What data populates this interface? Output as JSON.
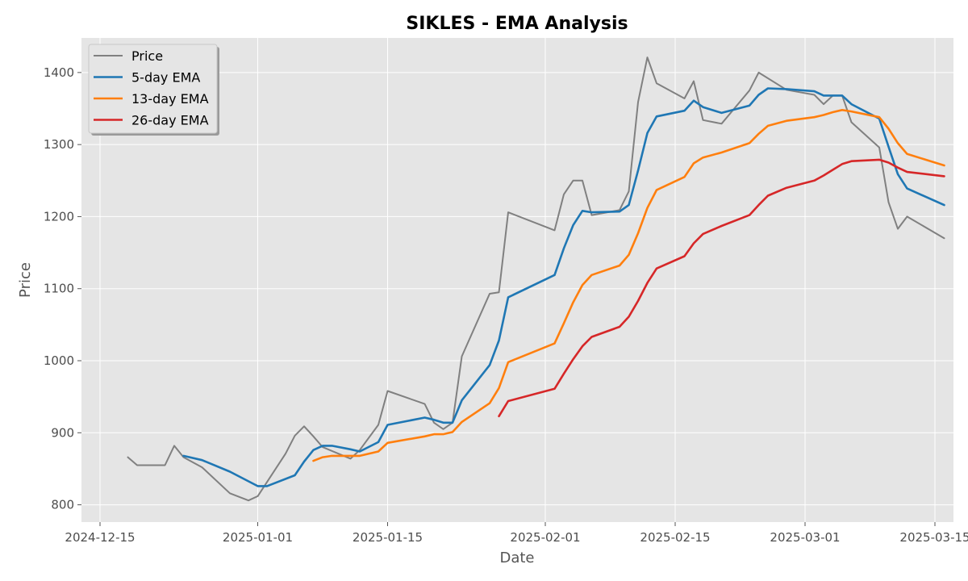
{
  "chart_data": {
    "type": "line",
    "title": "SIKLES - EMA Analysis",
    "xlabel": "Date",
    "ylabel": "Price",
    "x_range": [
      "2024-12-13",
      "2025-03-17"
    ],
    "ylim": [
      776,
      1448
    ],
    "x_ticks": [
      "2024-12-15",
      "2025-01-01",
      "2025-01-15",
      "2025-02-01",
      "2025-02-15",
      "2025-03-01",
      "2025-03-15"
    ],
    "y_ticks": [
      800,
      900,
      1000,
      1100,
      1200,
      1300,
      1400
    ],
    "grid": true,
    "legend_position": "top-left",
    "series": [
      {
        "name": "Price",
        "color": "#808080",
        "points": [
          [
            "2024-12-18",
            866
          ],
          [
            "2024-12-19",
            855
          ],
          [
            "2024-12-22",
            855
          ],
          [
            "2024-12-23",
            882
          ],
          [
            "2024-12-24",
            866
          ],
          [
            "2024-12-26",
            852
          ],
          [
            "2024-12-29",
            816
          ],
          [
            "2024-12-31",
            806
          ],
          [
            "2025-01-01",
            812
          ],
          [
            "2025-01-04",
            871
          ],
          [
            "2025-01-05",
            896
          ],
          [
            "2025-01-06",
            909
          ],
          [
            "2025-01-07",
            895
          ],
          [
            "2025-01-08",
            880
          ],
          [
            "2025-01-11",
            864
          ],
          [
            "2025-01-12",
            876
          ],
          [
            "2025-01-14",
            911
          ],
          [
            "2025-01-15",
            958
          ],
          [
            "2025-01-19",
            940
          ],
          [
            "2025-01-20",
            914
          ],
          [
            "2025-01-21",
            905
          ],
          [
            "2025-01-22",
            914
          ],
          [
            "2025-01-23",
            1006
          ],
          [
            "2025-01-26",
            1093
          ],
          [
            "2025-01-27",
            1095
          ],
          [
            "2025-01-28",
            1206
          ],
          [
            "2025-02-02",
            1181
          ],
          [
            "2025-02-03",
            1231
          ],
          [
            "2025-02-04",
            1250
          ],
          [
            "2025-02-05",
            1250
          ],
          [
            "2025-02-06",
            1202
          ],
          [
            "2025-02-09",
            1209
          ],
          [
            "2025-02-10",
            1235
          ],
          [
            "2025-02-11",
            1359
          ],
          [
            "2025-02-12",
            1421
          ],
          [
            "2025-02-13",
            1385
          ],
          [
            "2025-02-16",
            1364
          ],
          [
            "2025-02-17",
            1388
          ],
          [
            "2025-02-18",
            1334
          ],
          [
            "2025-02-20",
            1329
          ],
          [
            "2025-02-23",
            1375
          ],
          [
            "2025-02-24",
            1400
          ],
          [
            "2025-02-27",
            1376
          ],
          [
            "2025-03-02",
            1369
          ],
          [
            "2025-03-03",
            1356
          ],
          [
            "2025-03-04",
            1368
          ],
          [
            "2025-03-05",
            1368
          ],
          [
            "2025-03-06",
            1331
          ],
          [
            "2025-03-09",
            1296
          ],
          [
            "2025-03-10",
            1220
          ],
          [
            "2025-03-11",
            1183
          ],
          [
            "2025-03-12",
            1200
          ],
          [
            "2025-03-16",
            1170
          ]
        ]
      },
      {
        "name": "5-day EMA",
        "color": "#1f77b4",
        "points": [
          [
            "2024-12-24",
            868
          ],
          [
            "2024-12-26",
            862
          ],
          [
            "2024-12-29",
            846
          ],
          [
            "2025-01-01",
            826
          ],
          [
            "2025-01-02",
            826
          ],
          [
            "2025-01-05",
            841
          ],
          [
            "2025-01-06",
            860
          ],
          [
            "2025-01-07",
            876
          ],
          [
            "2025-01-08",
            882
          ],
          [
            "2025-01-09",
            882
          ],
          [
            "2025-01-11",
            877
          ],
          [
            "2025-01-12",
            874
          ],
          [
            "2025-01-14",
            887
          ],
          [
            "2025-01-15",
            911
          ],
          [
            "2025-01-19",
            921
          ],
          [
            "2025-01-20",
            918
          ],
          [
            "2025-01-21",
            914
          ],
          [
            "2025-01-22",
            914
          ],
          [
            "2025-01-23",
            945
          ],
          [
            "2025-01-26",
            994
          ],
          [
            "2025-01-27",
            1028
          ],
          [
            "2025-01-28",
            1088
          ],
          [
            "2025-02-02",
            1119
          ],
          [
            "2025-02-03",
            1156
          ],
          [
            "2025-02-04",
            1188
          ],
          [
            "2025-02-05",
            1208
          ],
          [
            "2025-02-06",
            1206
          ],
          [
            "2025-02-09",
            1207
          ],
          [
            "2025-02-10",
            1216
          ],
          [
            "2025-02-11",
            1264
          ],
          [
            "2025-02-12",
            1316
          ],
          [
            "2025-02-13",
            1339
          ],
          [
            "2025-02-16",
            1347
          ],
          [
            "2025-02-17",
            1361
          ],
          [
            "2025-02-18",
            1352
          ],
          [
            "2025-02-20",
            1344
          ],
          [
            "2025-02-23",
            1354
          ],
          [
            "2025-02-24",
            1369
          ],
          [
            "2025-02-25",
            1378
          ],
          [
            "2025-02-27",
            1377
          ],
          [
            "2025-03-02",
            1374
          ],
          [
            "2025-03-03",
            1368
          ],
          [
            "2025-03-04",
            1368
          ],
          [
            "2025-03-05",
            1368
          ],
          [
            "2025-03-06",
            1356
          ],
          [
            "2025-03-09",
            1336
          ],
          [
            "2025-03-10",
            1297
          ],
          [
            "2025-03-11",
            1259
          ],
          [
            "2025-03-12",
            1239
          ],
          [
            "2025-03-16",
            1216
          ]
        ]
      },
      {
        "name": "13-day EMA",
        "color": "#ff7f0e",
        "points": [
          [
            "2025-01-07",
            861
          ],
          [
            "2025-01-08",
            866
          ],
          [
            "2025-01-09",
            868
          ],
          [
            "2025-01-12",
            868
          ],
          [
            "2025-01-14",
            874
          ],
          [
            "2025-01-15",
            886
          ],
          [
            "2025-01-19",
            895
          ],
          [
            "2025-01-20",
            898
          ],
          [
            "2025-01-21",
            898
          ],
          [
            "2025-01-22",
            901
          ],
          [
            "2025-01-23",
            915
          ],
          [
            "2025-01-26",
            941
          ],
          [
            "2025-01-27",
            962
          ],
          [
            "2025-01-28",
            998
          ],
          [
            "2025-02-02",
            1024
          ],
          [
            "2025-02-03",
            1052
          ],
          [
            "2025-02-04",
            1081
          ],
          [
            "2025-02-05",
            1105
          ],
          [
            "2025-02-06",
            1119
          ],
          [
            "2025-02-09",
            1132
          ],
          [
            "2025-02-10",
            1147
          ],
          [
            "2025-02-11",
            1177
          ],
          [
            "2025-02-12",
            1212
          ],
          [
            "2025-02-13",
            1237
          ],
          [
            "2025-02-16",
            1255
          ],
          [
            "2025-02-17",
            1274
          ],
          [
            "2025-02-18",
            1282
          ],
          [
            "2025-02-20",
            1289
          ],
          [
            "2025-02-23",
            1302
          ],
          [
            "2025-02-24",
            1315
          ],
          [
            "2025-02-25",
            1326
          ],
          [
            "2025-02-27",
            1333
          ],
          [
            "2025-03-02",
            1338
          ],
          [
            "2025-03-03",
            1341
          ],
          [
            "2025-03-04",
            1345
          ],
          [
            "2025-03-05",
            1348
          ],
          [
            "2025-03-06",
            1346
          ],
          [
            "2025-03-09",
            1338
          ],
          [
            "2025-03-10",
            1322
          ],
          [
            "2025-03-11",
            1302
          ],
          [
            "2025-03-12",
            1287
          ],
          [
            "2025-03-16",
            1271
          ]
        ]
      },
      {
        "name": "26-day EMA",
        "color": "#d62728",
        "points": [
          [
            "2025-01-27",
            923
          ],
          [
            "2025-01-28",
            944
          ],
          [
            "2025-02-02",
            961
          ],
          [
            "2025-02-03",
            982
          ],
          [
            "2025-02-04",
            1002
          ],
          [
            "2025-02-05",
            1020
          ],
          [
            "2025-02-06",
            1033
          ],
          [
            "2025-02-09",
            1047
          ],
          [
            "2025-02-10",
            1061
          ],
          [
            "2025-02-11",
            1083
          ],
          [
            "2025-02-12",
            1108
          ],
          [
            "2025-02-13",
            1128
          ],
          [
            "2025-02-16",
            1145
          ],
          [
            "2025-02-17",
            1163
          ],
          [
            "2025-02-18",
            1176
          ],
          [
            "2025-02-20",
            1187
          ],
          [
            "2025-02-23",
            1202
          ],
          [
            "2025-02-24",
            1216
          ],
          [
            "2025-02-25",
            1229
          ],
          [
            "2025-02-27",
            1240
          ],
          [
            "2025-03-02",
            1250
          ],
          [
            "2025-03-03",
            1257
          ],
          [
            "2025-03-04",
            1265
          ],
          [
            "2025-03-05",
            1273
          ],
          [
            "2025-03-06",
            1277
          ],
          [
            "2025-03-09",
            1279
          ],
          [
            "2025-03-10",
            1275
          ],
          [
            "2025-03-11",
            1268
          ],
          [
            "2025-03-12",
            1262
          ],
          [
            "2025-03-16",
            1256
          ]
        ]
      }
    ]
  }
}
